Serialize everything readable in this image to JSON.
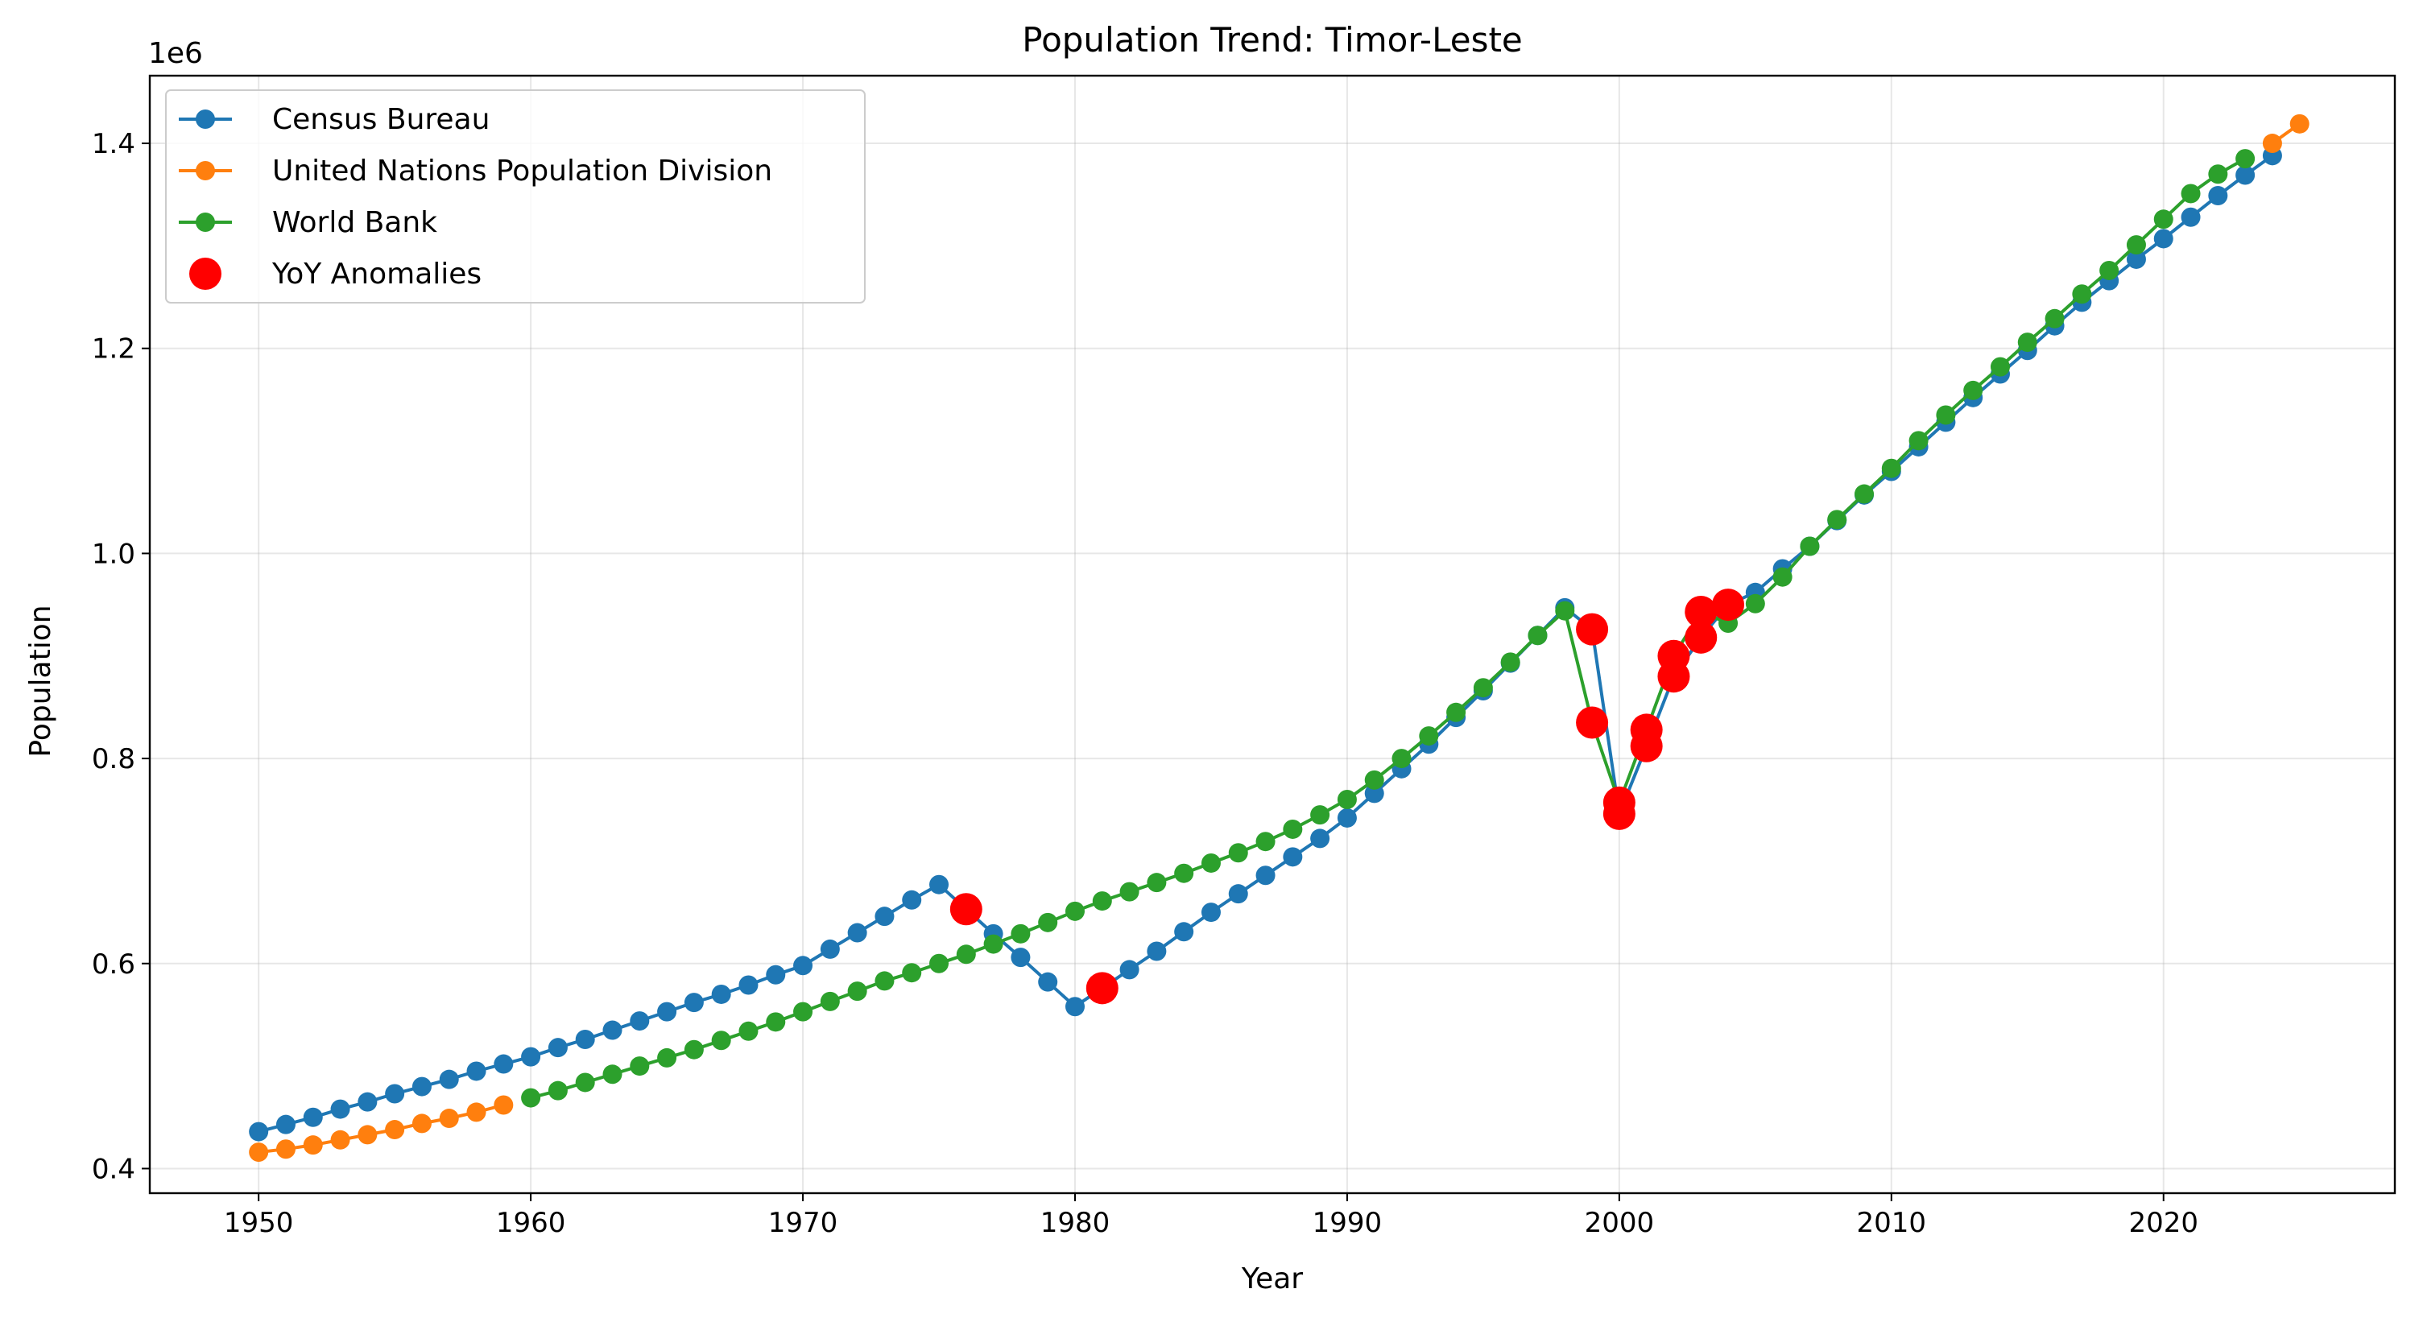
{
  "chart_data": {
    "type": "line",
    "title": "Population Trend: Timor-Leste",
    "xlabel": "Year",
    "ylabel": "Population",
    "y_offset_label": "1e6",
    "xlim": [
      1946,
      2028.5
    ],
    "ylim": [
      376000,
      1466000
    ],
    "x_ticks": [
      1950,
      1960,
      1970,
      1980,
      1990,
      2000,
      2010,
      2020
    ],
    "x_tick_labels": [
      "1950",
      "1960",
      "1970",
      "1980",
      "1990",
      "2000",
      "2010",
      "2020"
    ],
    "y_ticks": [
      400000,
      600000,
      800000,
      1000000,
      1200000,
      1400000
    ],
    "y_tick_labels": [
      "0.4",
      "0.6",
      "0.8",
      "1.0",
      "1.2",
      "1.4"
    ],
    "grid": true,
    "legend_position": "top-left",
    "series": [
      {
        "name": "Census Bureau",
        "color": "#1f77b4",
        "x": [
          1950,
          1951,
          1952,
          1953,
          1954,
          1955,
          1956,
          1957,
          1958,
          1959,
          1960,
          1961,
          1962,
          1963,
          1964,
          1965,
          1966,
          1967,
          1968,
          1969,
          1970,
          1971,
          1972,
          1973,
          1974,
          1975,
          1976,
          1977,
          1978,
          1979,
          1980,
          1981,
          1982,
          1983,
          1984,
          1985,
          1986,
          1987,
          1988,
          1989,
          1990,
          1991,
          1992,
          1993,
          1994,
          1995,
          1996,
          1997,
          1998,
          1999,
          2000,
          2001,
          2002,
          2003,
          2004,
          2005,
          2006,
          2007,
          2008,
          2009,
          2010,
          2011,
          2012,
          2013,
          2014,
          2015,
          2016,
          2017,
          2018,
          2019,
          2020,
          2021,
          2022,
          2023,
          2024
        ],
        "y": [
          436000,
          443000,
          450000,
          458000,
          465000,
          473000,
          480000,
          487000,
          495000,
          502000,
          509000,
          518000,
          526000,
          535000,
          544000,
          553000,
          562000,
          570000,
          579000,
          589000,
          598000,
          614000,
          630000,
          646000,
          662000,
          677000,
          653000,
          629000,
          606000,
          582000,
          558000,
          576000,
          594000,
          612000,
          631000,
          650000,
          668000,
          686000,
          704000,
          722000,
          742000,
          766000,
          790000,
          814000,
          840000,
          866000,
          893000,
          920000,
          947000,
          926000,
          746000,
          812000,
          880000,
          918000,
          950000,
          962000,
          985000,
          1007000,
          1032000,
          1057000,
          1080000,
          1104000,
          1128000,
          1152000,
          1175000,
          1198000,
          1222000,
          1245000,
          1266000,
          1287000,
          1307000,
          1328000,
          1349000,
          1369000,
          1388000
        ]
      },
      {
        "name": "United Nations Population Division",
        "color": "#ff7f0e",
        "x": [
          1950,
          1951,
          1952,
          1953,
          1954,
          1955,
          1956,
          1957,
          1958,
          1959,
          2024,
          2025
        ],
        "y": [
          416000,
          419000,
          423000,
          428000,
          433000,
          438000,
          444000,
          449000,
          455000,
          462000,
          1400000,
          1419000
        ]
      },
      {
        "name": "World Bank",
        "color": "#2ca02c",
        "x": [
          1960,
          1961,
          1962,
          1963,
          1964,
          1965,
          1966,
          1967,
          1968,
          1969,
          1970,
          1971,
          1972,
          1973,
          1974,
          1975,
          1976,
          1977,
          1978,
          1979,
          1980,
          1981,
          1982,
          1983,
          1984,
          1985,
          1986,
          1987,
          1988,
          1989,
          1990,
          1991,
          1992,
          1993,
          1994,
          1995,
          1996,
          1997,
          1998,
          1999,
          2000,
          2001,
          2002,
          2003,
          2004,
          2005,
          2006,
          2007,
          2008,
          2009,
          2010,
          2011,
          2012,
          2013,
          2014,
          2015,
          2016,
          2017,
          2018,
          2019,
          2020,
          2021,
          2022,
          2023
        ],
        "y": [
          469000,
          476000,
          484000,
          492000,
          500000,
          508000,
          516000,
          525000,
          534000,
          543000,
          553000,
          563000,
          573000,
          583000,
          591000,
          600000,
          609000,
          619000,
          629000,
          640000,
          651000,
          661000,
          670000,
          679000,
          688000,
          698000,
          708000,
          719000,
          731000,
          745000,
          760000,
          779000,
          800000,
          822000,
          845000,
          869000,
          894000,
          920000,
          944000,
          835000,
          757000,
          828000,
          900000,
          943000,
          932000,
          951000,
          977000,
          1007000,
          1033000,
          1058000,
          1083000,
          1110000,
          1135000,
          1159000,
          1182000,
          1206000,
          1229000,
          1253000,
          1276000,
          1301000,
          1326000,
          1351000,
          1370000,
          1385000
        ]
      }
    ],
    "anomalies": {
      "name": "YoY Anomalies",
      "color": "#ff0000",
      "points": [
        {
          "x": 1976,
          "y": 653000
        },
        {
          "x": 1981,
          "y": 576000
        },
        {
          "x": 1999,
          "y": 926000
        },
        {
          "x": 1999,
          "y": 835000
        },
        {
          "x": 2000,
          "y": 757000
        },
        {
          "x": 2000,
          "y": 746000
        },
        {
          "x": 2001,
          "y": 828000
        },
        {
          "x": 2001,
          "y": 812000
        },
        {
          "x": 2002,
          "y": 900000
        },
        {
          "x": 2002,
          "y": 880000
        },
        {
          "x": 2003,
          "y": 943000
        },
        {
          "x": 2003,
          "y": 918000
        },
        {
          "x": 2004,
          "y": 950000
        }
      ]
    }
  }
}
